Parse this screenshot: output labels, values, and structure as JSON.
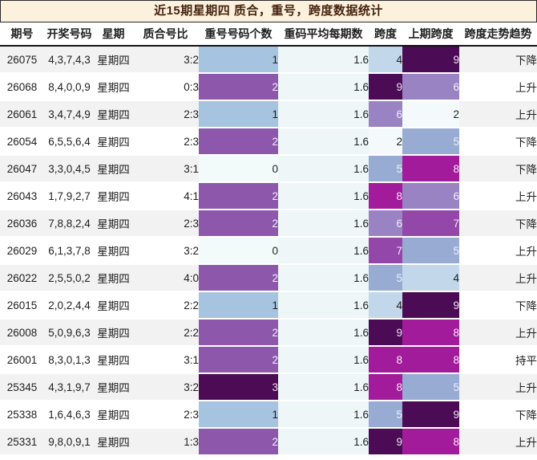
{
  "title": "近15期星期四 质合，重号，跨度数据统计",
  "chart_data": {
    "type": "table",
    "title": "近15期星期四 质合，重号，跨度数据统计",
    "columns": [
      "期号",
      "开奖号码",
      "星期",
      "质合号比",
      "重号号码个数",
      "重码平均每期数",
      "跨度",
      "上期跨度",
      "跨度走势趋势"
    ],
    "rows": [
      [
        "26075",
        "4,3,7,4,3",
        "星期四",
        "3:2",
        "1",
        "1.6",
        "4",
        "9",
        "下降"
      ],
      [
        "26068",
        "8,4,0,0,9",
        "星期四",
        "0:3",
        "2",
        "1.6",
        "9",
        "6",
        "上升"
      ],
      [
        "26061",
        "3,4,7,4,9",
        "星期四",
        "2:3",
        "1",
        "1.6",
        "6",
        "2",
        "上升"
      ],
      [
        "26054",
        "6,5,5,6,4",
        "星期四",
        "2:3",
        "2",
        "1.6",
        "2",
        "5",
        "下降"
      ],
      [
        "26047",
        "3,3,0,4,5",
        "星期四",
        "3:1",
        "0",
        "1.6",
        "5",
        "8",
        "下降"
      ],
      [
        "26043",
        "1,7,9,2,7",
        "星期四",
        "4:1",
        "2",
        "1.6",
        "8",
        "6",
        "上升"
      ],
      [
        "26036",
        "7,8,8,2,4",
        "星期四",
        "2:3",
        "2",
        "1.6",
        "6",
        "7",
        "下降"
      ],
      [
        "26029",
        "6,1,3,7,8",
        "星期四",
        "3:2",
        "0",
        "1.6",
        "7",
        "5",
        "上升"
      ],
      [
        "26022",
        "2,5,5,0,2",
        "星期四",
        "4:0",
        "2",
        "1.6",
        "5",
        "4",
        "上升"
      ],
      [
        "26015",
        "2,0,2,4,4",
        "星期四",
        "2:2",
        "1",
        "1.6",
        "4",
        "9",
        "下降"
      ],
      [
        "26008",
        "5,0,9,6,3",
        "星期四",
        "2:2",
        "2",
        "1.6",
        "9",
        "8",
        "上升"
      ],
      [
        "26001",
        "8,3,0,1,3",
        "星期四",
        "3:1",
        "2",
        "1.6",
        "8",
        "8",
        "持平"
      ],
      [
        "25345",
        "4,3,1,9,7",
        "星期四",
        "3:2",
        "3",
        "1.6",
        "8",
        "5",
        "上升"
      ],
      [
        "25338",
        "1,6,4,6,3",
        "星期四",
        "2:3",
        "1",
        "1.6",
        "5",
        "9",
        "下降"
      ],
      [
        "25331",
        "9,8,0,9,1",
        "星期四",
        "1:3",
        "2",
        "1.6",
        "9",
        "8",
        "上升"
      ]
    ]
  },
  "colors": {
    "title_bg": "#fcf1dd",
    "title_text": "#45250f",
    "stripe": "#f2f2f2",
    "avg_cell_bg": "#eef6f8",
    "repeat_scale": {
      "0": {
        "bg": "#f3fafa",
        "fg": "#1f1f1f"
      },
      "1": {
        "bg": "#a6c4e0",
        "fg": "#1f1f1f"
      },
      "2": {
        "bg": "#8d58ac",
        "fg": "#f4eef7"
      },
      "3": {
        "bg": "#4d0a55",
        "fg": "#ece2ee"
      }
    },
    "span_scale": {
      "2": {
        "bg": "#f4fafb",
        "fg": "#1f1f1f"
      },
      "4": {
        "bg": "#c2d7e9",
        "fg": "#1f1f1f"
      },
      "5": {
        "bg": "#98abd3",
        "fg": "#eff2f8"
      },
      "6": {
        "bg": "#9a83c2",
        "fg": "#f1eef7"
      },
      "7": {
        "bg": "#9347a8",
        "fg": "#f4ebf7"
      },
      "8": {
        "bg": "#a11b9b",
        "fg": "#f7e9f6"
      },
      "9": {
        "bg": "#4c0c55",
        "fg": "#ece2ee"
      }
    }
  }
}
